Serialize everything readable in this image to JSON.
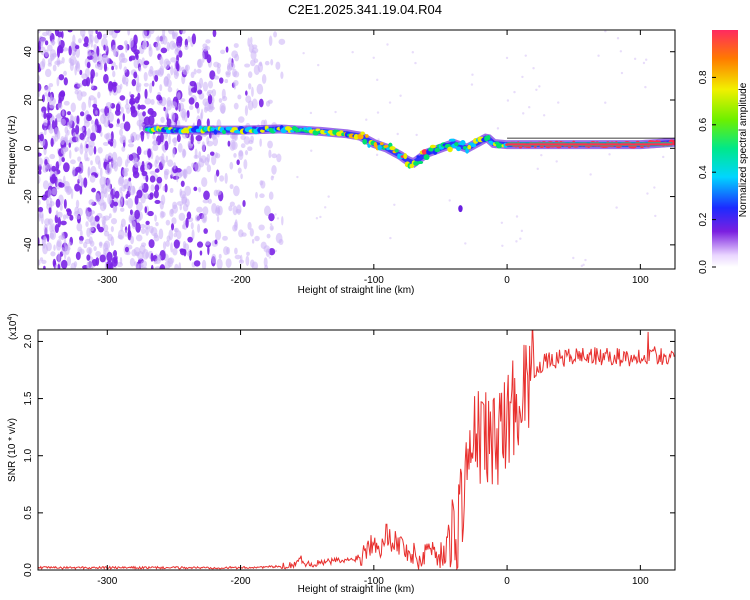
{
  "title": "C2E1.2025.341.19.04.R04",
  "chart_data": [
    {
      "type": "heatmap",
      "xlabel": "Height of straight line (km)",
      "ylabel": "Frequency (Hz)",
      "xlim": [
        -352,
        126
      ],
      "ylim": [
        -50,
        49
      ],
      "xticks": [
        -300,
        -200,
        -100,
        0,
        100
      ],
      "yticks": [
        -40,
        -20,
        0,
        20,
        40
      ],
      "xtick_labels": [
        "-300",
        "-200",
        "-100",
        "0",
        "100"
      ],
      "ytick_labels": [
        "-40",
        "-20",
        "0",
        "20",
        "40"
      ],
      "colorbar": {
        "label": "Normalized spectral amplitude",
        "range": [
          0,
          1
        ],
        "ticks": [
          0,
          0.2,
          0.4,
          0.6,
          0.8
        ],
        "tick_labels": [
          "0.0",
          "0.2",
          "0.4",
          "0.6",
          "0.8"
        ]
      },
      "ridge": {
        "description": "main signal ridge (frequency vs height)",
        "x": [
          -270,
          -240,
          -200,
          -170,
          -140,
          -120,
          -110,
          -100,
          -90,
          -80,
          -75,
          -70,
          -60,
          -50,
          -40,
          -30,
          -20,
          -15,
          -10,
          0,
          20,
          60,
          100,
          126
        ],
        "y": [
          8,
          7.5,
          7.5,
          8,
          7,
          6,
          5,
          2,
          0,
          -3,
          -5,
          -6,
          -2,
          0,
          2,
          0,
          3,
          4.5,
          2,
          1.5,
          1.5,
          1.5,
          1.5,
          2.5
        ]
      },
      "noise_region_x": [
        -352,
        -180
      ],
      "isolated_points": [
        {
          "x": -35,
          "y": -25
        }
      ]
    },
    {
      "type": "line",
      "xlabel": "Height of straight line (km)",
      "ylabel": "SNR (10 * v/v)",
      "multiplier_label": "(x10",
      "multiplier_exp": "4",
      "multiplier_close": ")",
      "xlim": [
        -352,
        126
      ],
      "ylim": [
        0,
        2.1
      ],
      "xticks": [
        -300,
        -200,
        -100,
        0,
        100
      ],
      "yticks": [
        0,
        0.5,
        1.0,
        1.5,
        2.0
      ],
      "xtick_labels": [
        "-300",
        "-200",
        "-100",
        "0",
        "100"
      ],
      "ytick_labels": [
        "0.0",
        "0.5",
        "1.0",
        "1.5",
        "2.0"
      ],
      "color": "#e8302e",
      "series": [
        {
          "name": "SNR",
          "x": [
            -352,
            -300,
            -250,
            -200,
            -170,
            -160,
            -155,
            -150,
            -140,
            -130,
            -120,
            -110,
            -100,
            -95,
            -90,
            -85,
            -80,
            -75,
            -70,
            -65,
            -60,
            -55,
            -50,
            -45,
            -40,
            -35,
            -30,
            -25,
            -20,
            -15,
            -10,
            -5,
            0,
            5,
            10,
            15,
            20,
            25,
            30,
            40,
            50,
            60,
            70,
            80,
            90,
            100,
            110,
            120,
            126
          ],
          "y": [
            0.02,
            0.02,
            0.02,
            0.02,
            0.03,
            0.05,
            0.1,
            0.05,
            0.06,
            0.08,
            0.08,
            0.12,
            0.28,
            0.22,
            0.32,
            0.26,
            0.22,
            0.18,
            0.12,
            0.08,
            0.2,
            0.18,
            0.12,
            0.2,
            0.3,
            0.55,
            0.9,
            1.1,
            1.2,
            1.15,
            1.1,
            1.25,
            1.3,
            1.45,
            1.55,
            1.65,
            1.75,
            1.8,
            1.82,
            1.85,
            1.87,
            1.88,
            1.86,
            1.87,
            1.85,
            1.88,
            1.88,
            1.87,
            1.87
          ]
        }
      ]
    }
  ]
}
